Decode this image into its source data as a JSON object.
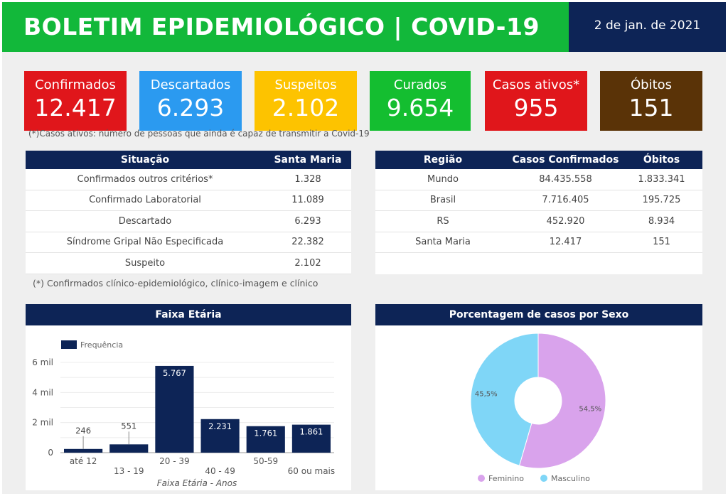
{
  "header": {
    "title": "BOLETIM EPIDEMIOLÓGICO | COVID-19",
    "date": "2 de jan. de 2021"
  },
  "cards": [
    {
      "label": "Confirmados",
      "value": "12.417",
      "color": "#e0161b"
    },
    {
      "label": "Descartados",
      "value": "6.293",
      "color": "#2b9af0"
    },
    {
      "label": "Suspeitos",
      "value": "2.102",
      "color": "#fdc300"
    },
    {
      "label": "Curados",
      "value": "9.654",
      "color": "#14be30"
    },
    {
      "label": "Casos ativos*",
      "value": "955",
      "color": "#e0161b"
    },
    {
      "label": "Óbitos",
      "value": "151",
      "color": "#5a3307"
    }
  ],
  "cards_note": "(*)Casos ativos: número de pessoas que ainda é capaz de transmitir a Covid-19",
  "table1": {
    "headers": [
      "Situação",
      "Santa Maria"
    ],
    "rows": [
      [
        "Confirmados outros critérios*",
        "1.328"
      ],
      [
        "Confirmado Laboratorial",
        "11.089"
      ],
      [
        "Descartado",
        "6.293"
      ],
      [
        "Síndrome Gripal Não Especificada",
        "22.382"
      ],
      [
        "Suspeito",
        "2.102"
      ]
    ],
    "note": "(*) Confirmados clínico-epidemiológico, clínico-imagem e clínico"
  },
  "table2": {
    "headers": [
      "Região",
      "Casos Confirmados",
      "Óbitos"
    ],
    "rows": [
      [
        "Mundo",
        "84.435.558",
        "1.833.341"
      ],
      [
        "Brasil",
        "7.716.405",
        "195.725"
      ],
      [
        "RS",
        "452.920",
        "8.934"
      ],
      [
        "Santa Maria",
        "12.417",
        "151"
      ]
    ]
  },
  "chart_data": [
    {
      "type": "bar",
      "title": "Faixa Etária",
      "xlabel": "Faixa Etária - Anos",
      "ylabel": "",
      "categories": [
        "até 12",
        "13 - 19",
        "20 - 39",
        "40 - 49",
        "50-59",
        "60 ou mais"
      ],
      "series": [
        {
          "name": "Frequência",
          "values": [
            246,
            551,
            5767,
            2231,
            1761,
            1861
          ],
          "labels": [
            "246",
            "551",
            "5.767",
            "2.231",
            "1.761",
            "1.861"
          ],
          "color": "#0d2456"
        }
      ],
      "ylim": [
        0,
        6000
      ],
      "yticks": [
        {
          "v": 0,
          "label": "0"
        },
        {
          "v": 2000,
          "label": "2 mil"
        },
        {
          "v": 4000,
          "label": "4 mil"
        },
        {
          "v": 6000,
          "label": "6 mil"
        }
      ],
      "grid": true,
      "legend": "top-left"
    },
    {
      "type": "pie",
      "title": "Porcentagem de casos por Sexo",
      "donut": true,
      "slices": [
        {
          "name": "Feminino",
          "value": 54.5,
          "label": "54,5%",
          "color": "#d9a3ec"
        },
        {
          "name": "Masculino",
          "value": 45.5,
          "label": "45,5%",
          "color": "#7fd6f7"
        }
      ],
      "legend": "bottom"
    }
  ]
}
